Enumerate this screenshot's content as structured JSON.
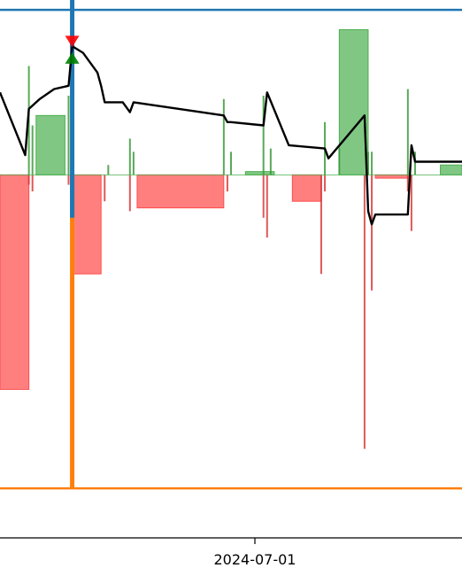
{
  "chart_data": {
    "type": "area",
    "title": "",
    "xlabel": "",
    "ylabel": "",
    "grid": false,
    "legend": "none",
    "x_tick_labels": [
      "2024-07-01"
    ],
    "x_axis_visible_range": [
      "2024-04-29",
      "2024-09-04"
    ],
    "y_range": [
      -11.0,
      5.3
    ],
    "colors": {
      "positive_fill": "#4caf50",
      "negative_fill": "#ff4d4d",
      "line": "#000000",
      "blue_reference": "#1f77b4",
      "orange_reference": "#ff7f0e",
      "up_marker": "#008000",
      "down_marker": "#ff0000"
    },
    "reference_lines": {
      "blue_horizontal_y": 5.0,
      "blue_vertical_x": "2024-05-19",
      "orange_horizontal_y": -9.5,
      "orange_vertical_x": "2024-05-19"
    },
    "bars": [
      {
        "start": "2024-04-29",
        "end": "2024-05-07",
        "value": -6.5
      },
      {
        "start": "2024-05-09",
        "end": "2024-05-17",
        "value": 1.8
      },
      {
        "start": "2024-05-19",
        "end": "2024-05-27",
        "value": -3.0
      },
      {
        "start": "2024-06-06",
        "end": "2024-06-30",
        "value": -1.0
      },
      {
        "start": "2024-07-06",
        "end": "2024-07-14",
        "value": 0.1
      },
      {
        "start": "2024-07-19",
        "end": "2024-07-27",
        "value": -0.8
      },
      {
        "start": "2024-08-01",
        "end": "2024-08-09",
        "value": 4.4
      },
      {
        "start": "2024-08-11",
        "end": "2024-08-20",
        "value": -0.1
      },
      {
        "start": "2024-08-29",
        "end": "2024-09-04",
        "value": 0.3
      }
    ],
    "spikes": [
      {
        "x": "2024-05-07",
        "value": 3.3
      },
      {
        "x": "2024-05-07",
        "value": -0.3
      },
      {
        "x": "2024-05-08",
        "value": 1.5
      },
      {
        "x": "2024-05-08",
        "value": -0.5
      },
      {
        "x": "2024-05-18",
        "value": 2.4
      },
      {
        "x": "2024-05-18",
        "value": -0.3
      },
      {
        "x": "2024-05-28",
        "value": -0.8
      },
      {
        "x": "2024-05-29",
        "value": 0.3
      },
      {
        "x": "2024-06-04",
        "value": 1.1
      },
      {
        "x": "2024-06-04",
        "value": -1.1
      },
      {
        "x": "2024-06-05",
        "value": 0.7
      },
      {
        "x": "2024-06-30",
        "value": 2.3
      },
      {
        "x": "2024-07-01",
        "value": -0.5
      },
      {
        "x": "2024-07-02",
        "value": 0.7
      },
      {
        "x": "2024-07-11",
        "value": 2.4
      },
      {
        "x": "2024-07-11",
        "value": -1.3
      },
      {
        "x": "2024-07-12",
        "value": -1.9
      },
      {
        "x": "2024-07-13",
        "value": 0.8
      },
      {
        "x": "2024-07-27",
        "value": -3.0
      },
      {
        "x": "2024-07-28",
        "value": 1.6
      },
      {
        "x": "2024-07-28",
        "value": -0.5
      },
      {
        "x": "2024-08-01",
        "value": 0.8
      },
      {
        "x": "2024-08-08",
        "value": -8.3
      },
      {
        "x": "2024-08-09",
        "value": 0.7
      },
      {
        "x": "2024-08-10",
        "value": -3.5
      },
      {
        "x": "2024-08-10",
        "value": 0.7
      },
      {
        "x": "2024-08-20",
        "value": 2.6
      },
      {
        "x": "2024-08-20",
        "value": -0.5
      },
      {
        "x": "2024-08-21",
        "value": -1.7
      },
      {
        "x": "2024-08-22",
        "value": 0.7
      }
    ],
    "line": {
      "x": [
        "2024-04-29",
        "2024-05-06",
        "2024-05-07",
        "2024-05-08",
        "2024-05-10",
        "2024-05-14",
        "2024-05-18",
        "2024-05-19",
        "2024-05-22",
        "2024-05-26",
        "2024-05-27",
        "2024-05-28",
        "2024-06-02",
        "2024-06-04",
        "2024-06-05",
        "2024-06-30",
        "2024-07-01",
        "2024-07-02",
        "2024-07-11",
        "2024-07-12",
        "2024-07-18",
        "2024-07-28",
        "2024-07-29",
        "2024-08-08",
        "2024-08-09",
        "2024-08-10",
        "2024-08-11",
        "2024-08-20",
        "2024-08-21",
        "2024-08-22",
        "2024-09-04"
      ],
      "y": [
        2.5,
        0.6,
        2.0,
        2.1,
        2.3,
        2.6,
        2.7,
        3.9,
        3.7,
        3.1,
        2.7,
        2.2,
        2.2,
        1.9,
        2.2,
        1.8,
        1.6,
        1.6,
        1.5,
        2.5,
        0.9,
        0.8,
        0.5,
        1.8,
        -1.1,
        -1.5,
        -1.2,
        -1.2,
        0.9,
        0.4,
        0.4
      ]
    },
    "markers": [
      {
        "x": "2024-05-19",
        "y": 4.0,
        "kind": "sell",
        "color": "red"
      },
      {
        "x": "2024-05-19",
        "y": 3.5,
        "kind": "buy",
        "color": "green"
      }
    ]
  }
}
